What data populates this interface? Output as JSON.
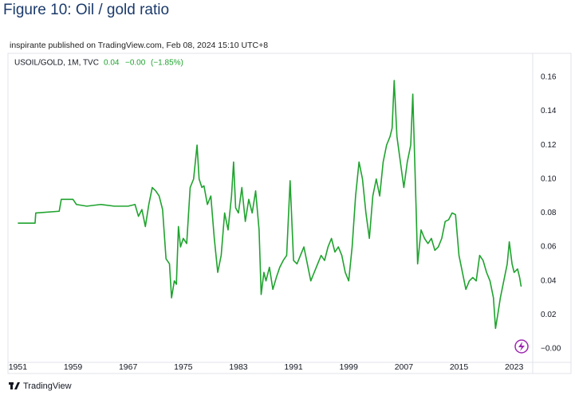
{
  "chart_data": {
    "type": "line",
    "title": "Figure 10: Oil / gold ratio",
    "subtitle": "inspirante published on TradingView.com, Feb 08, 2024 15:10 UTC+8",
    "legend": {
      "symbol": "USOIL/GOLD, 1M, TVC",
      "last": "0.04",
      "change": "−0.00",
      "change_pct": "(−1.85%)"
    },
    "footer": "TradingView",
    "x": [
      1951,
      1953.5,
      1953.6,
      1957,
      1957.3,
      1959,
      1959.5,
      1961,
      1963,
      1965,
      1967,
      1968,
      1968.5,
      1969,
      1969.5,
      1970,
      1970.5,
      1971,
      1971.5,
      1972,
      1972.5,
      1973,
      1973.3,
      1973.7,
      1974,
      1974.3,
      1974.6,
      1975,
      1975.5,
      1976,
      1976.5,
      1977,
      1977.3,
      1977.7,
      1978,
      1978.5,
      1979,
      1979.5,
      1980,
      1980.5,
      1981,
      1981.5,
      1982,
      1982.3,
      1982.6,
      1983,
      1983.5,
      1984,
      1984.5,
      1985,
      1985.5,
      1986,
      1986.3,
      1986.7,
      1987,
      1987.5,
      1988,
      1988.5,
      1989,
      1989.5,
      1990,
      1990.5,
      1991,
      1991.5,
      1992,
      1992.5,
      1993,
      1993.5,
      1994,
      1994.5,
      1995,
      1995.5,
      1996,
      1996.5,
      1997,
      1997.5,
      1998,
      1998.5,
      1999,
      1999.5,
      2000,
      2000.5,
      2001,
      2001.5,
      2002,
      2002.5,
      2003,
      2003.5,
      2004,
      2004.5,
      2005,
      2005.3,
      2005.6,
      2006,
      2006.5,
      2007,
      2007.5,
      2008,
      2008.3,
      2008.8,
      2009,
      2009.5,
      2010,
      2010.5,
      2011,
      2011.5,
      2012,
      2012.5,
      2013,
      2013.5,
      2014,
      2014.5,
      2015,
      2015.5,
      2016,
      2016.5,
      2017,
      2017.5,
      2018,
      2018.5,
      2019,
      2019.5,
      2020,
      2020.3,
      2020.7,
      2021,
      2021.5,
      2022,
      2022.3,
      2022.7,
      2023,
      2023.5,
      2023.8,
      2024,
      2024.1
    ],
    "series": [
      {
        "name": "USOIL/GOLD",
        "color": "#1fa32e",
        "values": [
          0.074,
          0.074,
          0.08,
          0.081,
          0.088,
          0.088,
          0.085,
          0.084,
          0.085,
          0.084,
          0.084,
          0.085,
          0.078,
          0.082,
          0.072,
          0.085,
          0.095,
          0.093,
          0.09,
          0.082,
          0.053,
          0.05,
          0.03,
          0.04,
          0.038,
          0.072,
          0.06,
          0.065,
          0.062,
          0.095,
          0.1,
          0.12,
          0.1,
          0.095,
          0.096,
          0.085,
          0.09,
          0.065,
          0.045,
          0.055,
          0.08,
          0.07,
          0.09,
          0.11,
          0.083,
          0.08,
          0.095,
          0.075,
          0.088,
          0.08,
          0.093,
          0.07,
          0.032,
          0.045,
          0.04,
          0.048,
          0.035,
          0.042,
          0.048,
          0.052,
          0.055,
          0.099,
          0.052,
          0.05,
          0.055,
          0.06,
          0.05,
          0.04,
          0.045,
          0.05,
          0.055,
          0.052,
          0.06,
          0.065,
          0.057,
          0.06,
          0.055,
          0.045,
          0.04,
          0.06,
          0.09,
          0.11,
          0.1,
          0.08,
          0.065,
          0.09,
          0.1,
          0.09,
          0.11,
          0.12,
          0.125,
          0.13,
          0.158,
          0.125,
          0.11,
          0.095,
          0.11,
          0.12,
          0.15,
          0.08,
          0.05,
          0.07,
          0.065,
          0.062,
          0.065,
          0.058,
          0.06,
          0.065,
          0.075,
          0.076,
          0.08,
          0.079,
          0.055,
          0.045,
          0.035,
          0.04,
          0.042,
          0.04,
          0.055,
          0.052,
          0.045,
          0.04,
          0.03,
          0.012,
          0.022,
          0.03,
          0.04,
          0.05,
          0.063,
          0.05,
          0.045,
          0.047,
          0.042,
          0.037,
          0.037
        ]
      }
    ],
    "xlim": [
      1949.8,
      2025.7
    ],
    "xticks": [
      1951,
      1959,
      1967,
      1975,
      1983,
      1991,
      1999,
      2007,
      2015,
      2023
    ],
    "ylim": [
      -0.008,
      0.174
    ],
    "yticks": [
      {
        "value": 0,
        "label": "−0.00"
      },
      0.02,
      0.04,
      0.06,
      0.08,
      {
        "value": 0.1,
        "label": "0.10"
      },
      0.12,
      0.14,
      0.16
    ],
    "grid": false
  }
}
